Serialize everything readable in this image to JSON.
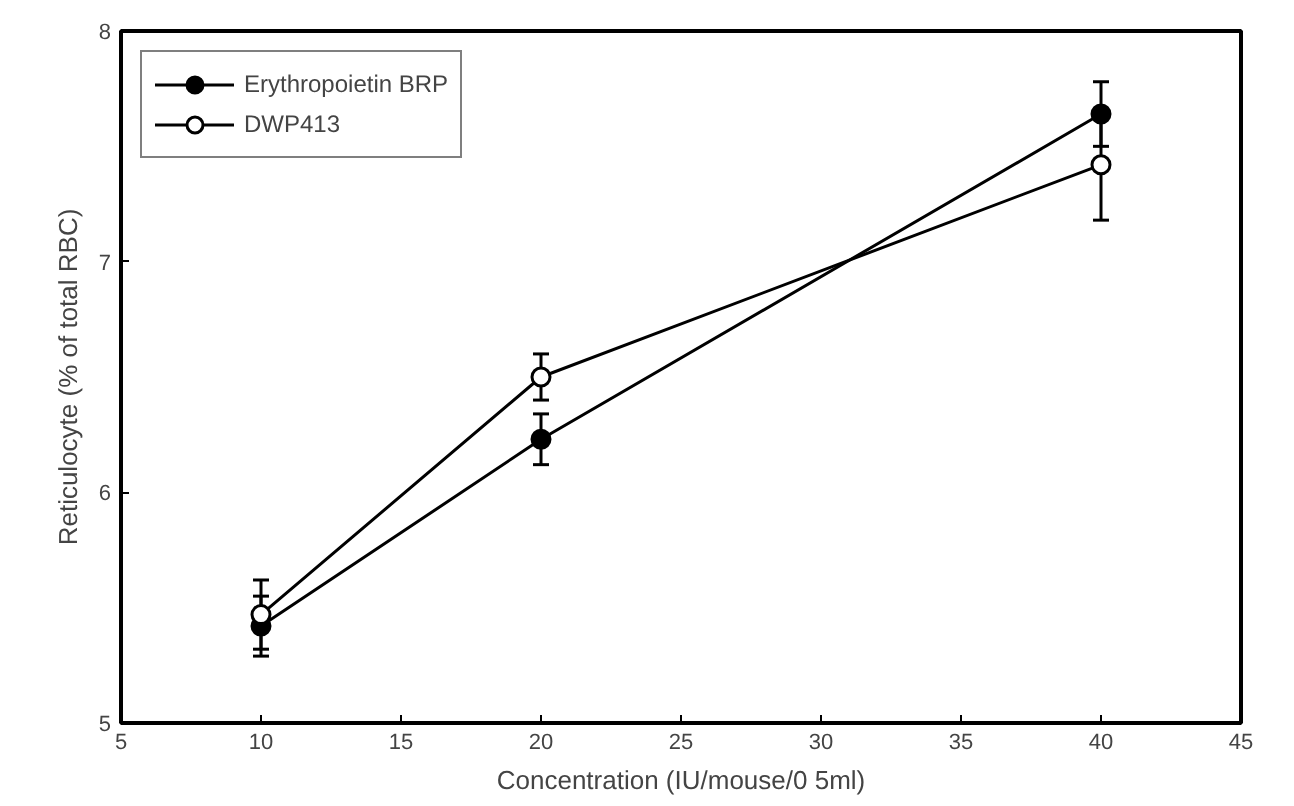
{
  "chart_data": {
    "type": "line",
    "xlabel": "Concentration (IU/mouse/0 5ml)",
    "ylabel": "Reticulocyte (% of total RBC)",
    "x": [
      10,
      20,
      40
    ],
    "series": [
      {
        "name": "Erythropoietin BRP",
        "color": "#000000",
        "marker": "circle",
        "values": [
          5.42,
          6.23,
          7.64
        ],
        "errors": [
          0.13,
          0.11,
          0.14
        ]
      },
      {
        "name": "DWP413",
        "color": "#000000",
        "marker": "circle_open",
        "values": [
          5.47,
          6.5,
          7.42
        ],
        "errors": [
          0.15,
          0.1,
          0.24
        ]
      }
    ],
    "xlim": [
      5,
      45
    ],
    "xticks": [
      5,
      10,
      15,
      20,
      25,
      30,
      35,
      40,
      45
    ],
    "ylim": [
      5,
      8
    ],
    "yticks": [
      5,
      6,
      7,
      8
    ],
    "grid": false,
    "legend": "top left",
    "line_style": "solid"
  }
}
